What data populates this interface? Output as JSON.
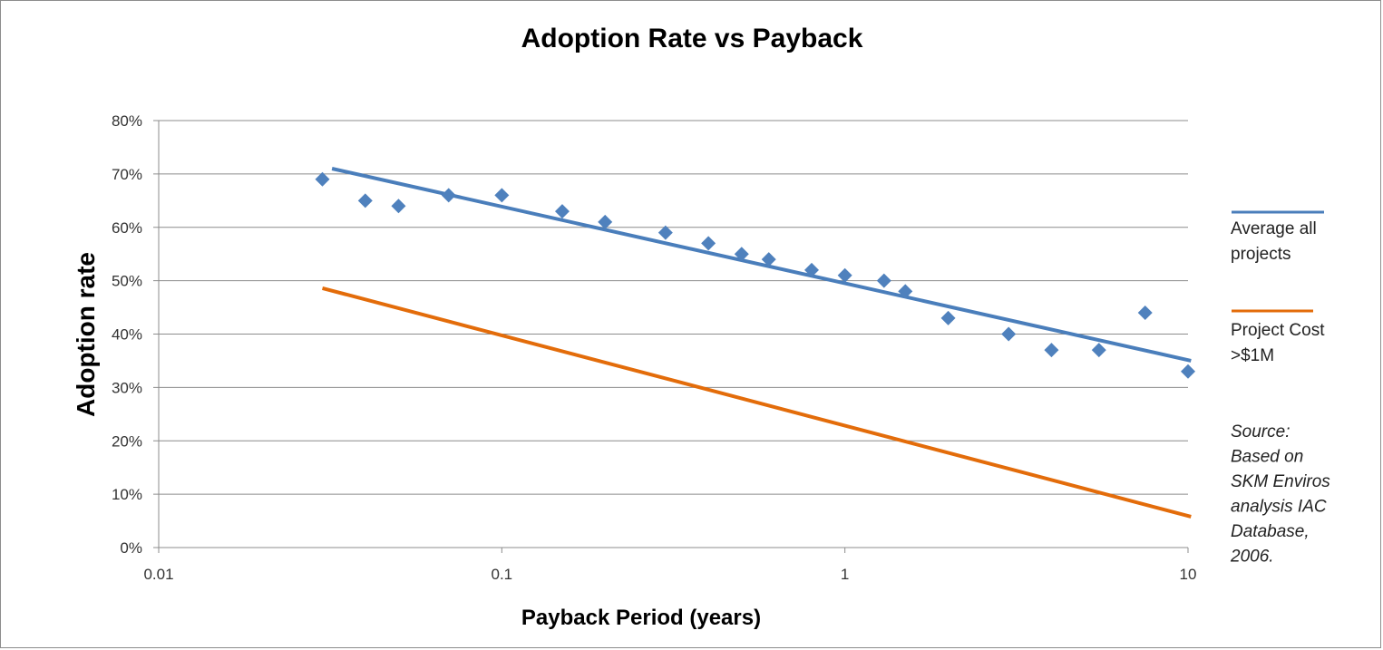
{
  "chart_data": {
    "type": "scatter",
    "title": "Adoption Rate vs Payback",
    "xlabel": "Payback Period (years)",
    "ylabel": "Adoption rate",
    "xscale": "log",
    "xlim": [
      0.01,
      10
    ],
    "ylim": [
      0,
      0.8
    ],
    "x_ticks": [
      {
        "value": 0.01,
        "label": "0.01"
      },
      {
        "value": 0.1,
        "label": "0.1"
      },
      {
        "value": 1,
        "label": "1"
      },
      {
        "value": 10,
        "label": "10"
      }
    ],
    "y_ticks": [
      {
        "value": 0,
        "label": "0%"
      },
      {
        "value": 0.1,
        "label": "10%"
      },
      {
        "value": 0.2,
        "label": "20%"
      },
      {
        "value": 0.3,
        "label": "30%"
      },
      {
        "value": 0.4,
        "label": "40%"
      },
      {
        "value": 0.5,
        "label": "50%"
      },
      {
        "value": 0.6,
        "label": "60%"
      },
      {
        "value": 0.7,
        "label": "70%"
      },
      {
        "value": 0.8,
        "label": "80%"
      }
    ],
    "grid": true,
    "points": {
      "color": "#4f81bd",
      "marker": "diamond",
      "x": [
        0.03,
        0.04,
        0.05,
        0.07,
        0.1,
        0.15,
        0.2,
        0.3,
        0.4,
        0.5,
        0.6,
        0.8,
        1.0,
        1.3,
        1.5,
        2.0,
        3.0,
        4.0,
        5.5,
        7.5,
        10.0
      ],
      "y": [
        0.69,
        0.65,
        0.64,
        0.66,
        0.66,
        0.63,
        0.61,
        0.59,
        0.57,
        0.55,
        0.54,
        0.52,
        0.51,
        0.5,
        0.48,
        0.43,
        0.4,
        0.37,
        0.37,
        0.44,
        0.33
      ]
    },
    "series": [
      {
        "name": "Average all projects",
        "color": "#4a7ebb",
        "x": [
          0.032,
          10.2
        ],
        "y": [
          0.71,
          0.35
        ]
      },
      {
        "name": "Project Cost >$1M",
        "color": "#e36c0a",
        "x": [
          0.03,
          10.2
        ],
        "y": [
          0.486,
          0.058
        ]
      }
    ],
    "legend": {
      "placement": "right",
      "entries": [
        {
          "lines": [
            "Average all",
            "projects"
          ],
          "color": "#4a7ebb"
        },
        {
          "lines": [
            "Project Cost",
            ">$1M"
          ],
          "color": "#e36c0a"
        }
      ]
    },
    "annotation": {
      "lines": [
        "Source:",
        "Based on",
        "SKM  Enviros",
        "analysis IAC",
        "Database,",
        "2006."
      ]
    }
  }
}
